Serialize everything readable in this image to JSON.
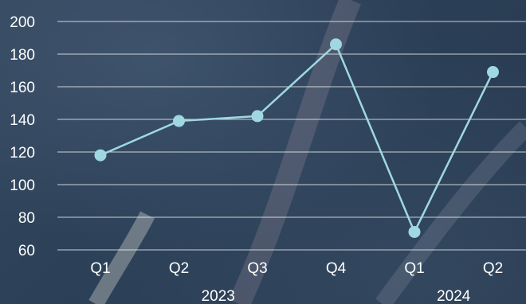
{
  "colors": {
    "series": "#9fd8e0",
    "grid": "#ffffff",
    "text": "#ffffff",
    "background": "#2c4258"
  },
  "chart_data": {
    "type": "line",
    "title": "",
    "xlabel": "",
    "ylabel": "",
    "categories": [
      "Q1",
      "Q2",
      "Q3",
      "Q4",
      "Q1",
      "Q2"
    ],
    "groups": [
      {
        "label": "2023",
        "categories": [
          "Q1",
          "Q2",
          "Q3",
          "Q4"
        ]
      },
      {
        "label": "2024",
        "categories": [
          "Q1",
          "Q2"
        ]
      }
    ],
    "series": [
      {
        "values": [
          118,
          139,
          142,
          186,
          71,
          169
        ]
      }
    ],
    "ylim": [
      60,
      200
    ],
    "yticks": [
      60,
      80,
      100,
      120,
      140,
      160,
      180,
      200
    ],
    "grid": true,
    "legend": "none"
  }
}
